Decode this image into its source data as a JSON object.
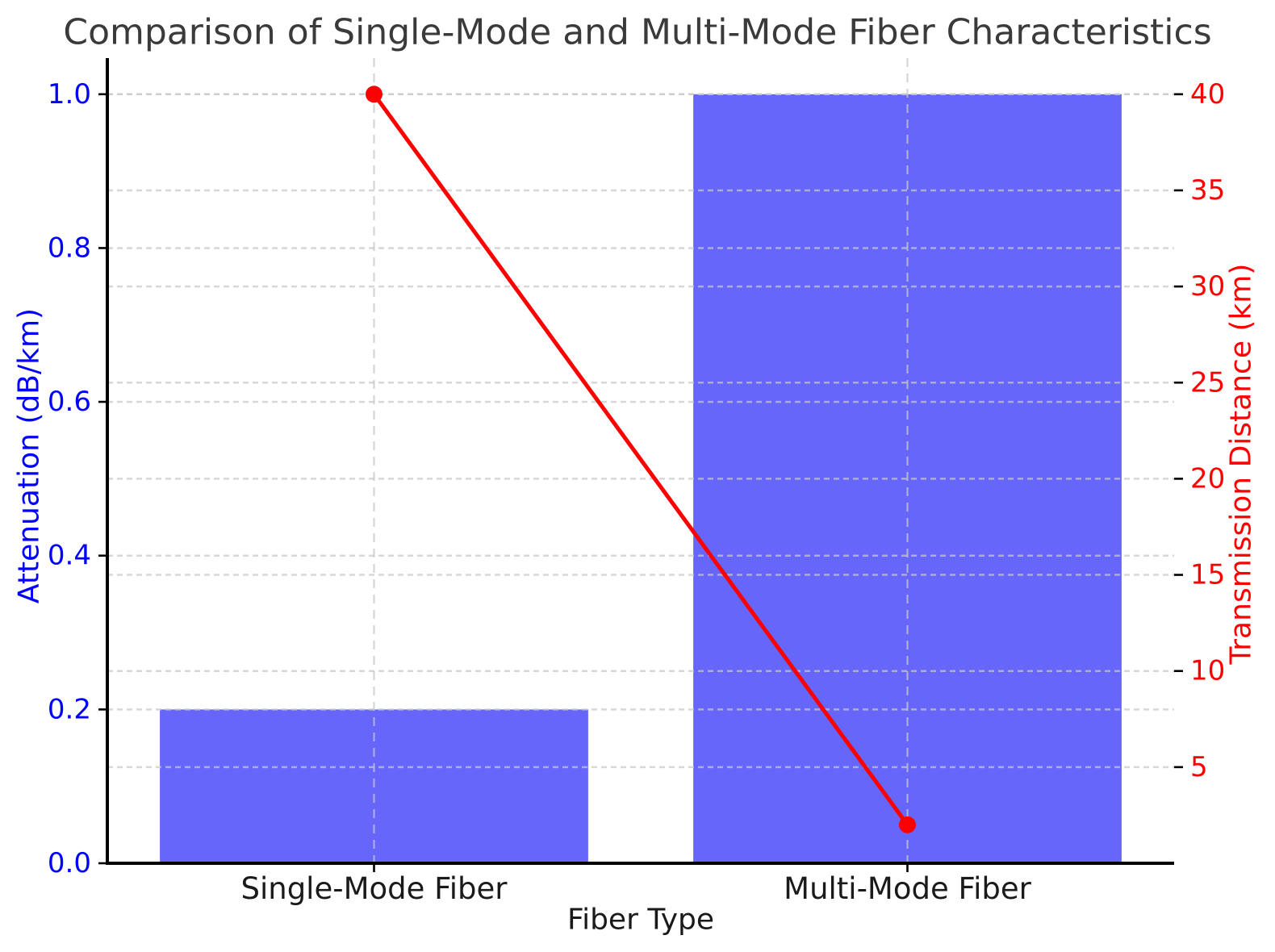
{
  "title": "Comparison of Single-Mode and Multi-Mode Fiber Characteristics",
  "chart_data": {
    "type": "bar",
    "categories": [
      "Single-Mode Fiber",
      "Multi-Mode Fiber"
    ],
    "series": [
      {
        "name": "Attenuation (dB/km)",
        "kind": "bar",
        "axis": "left",
        "values": [
          0.2,
          1.0
        ],
        "color": "#6666fa"
      },
      {
        "name": "Transmission Distance (km)",
        "kind": "line",
        "axis": "right",
        "values": [
          40,
          2
        ],
        "color": "#ff0000",
        "marker": "circle"
      }
    ],
    "xlabel": "Fiber Type",
    "ylabel_left": "Attenuation (dB/km)",
    "ylabel_right": "Transmission Distance (km)",
    "ylim_left": [
      0,
      1.047
    ],
    "ylim_right": [
      0,
      41.88
    ],
    "yticks_left": [
      "0.0",
      "0.2",
      "0.4",
      "0.6",
      "0.8",
      "1.0"
    ],
    "yticks_right": [
      "5",
      "10",
      "15",
      "20",
      "25",
      "30",
      "35",
      "40"
    ],
    "grid": true,
    "legend": "none",
    "colors": {
      "left_axis": "#0000ff",
      "right_axis": "#ff0000",
      "bar": "#6666fa",
      "line": "#ff0000",
      "grid": "#c8c8c8",
      "spine": "#000000",
      "tick": "#000000",
      "xtick_label": "#1a1a1a",
      "title": "#3a3a3a"
    }
  }
}
